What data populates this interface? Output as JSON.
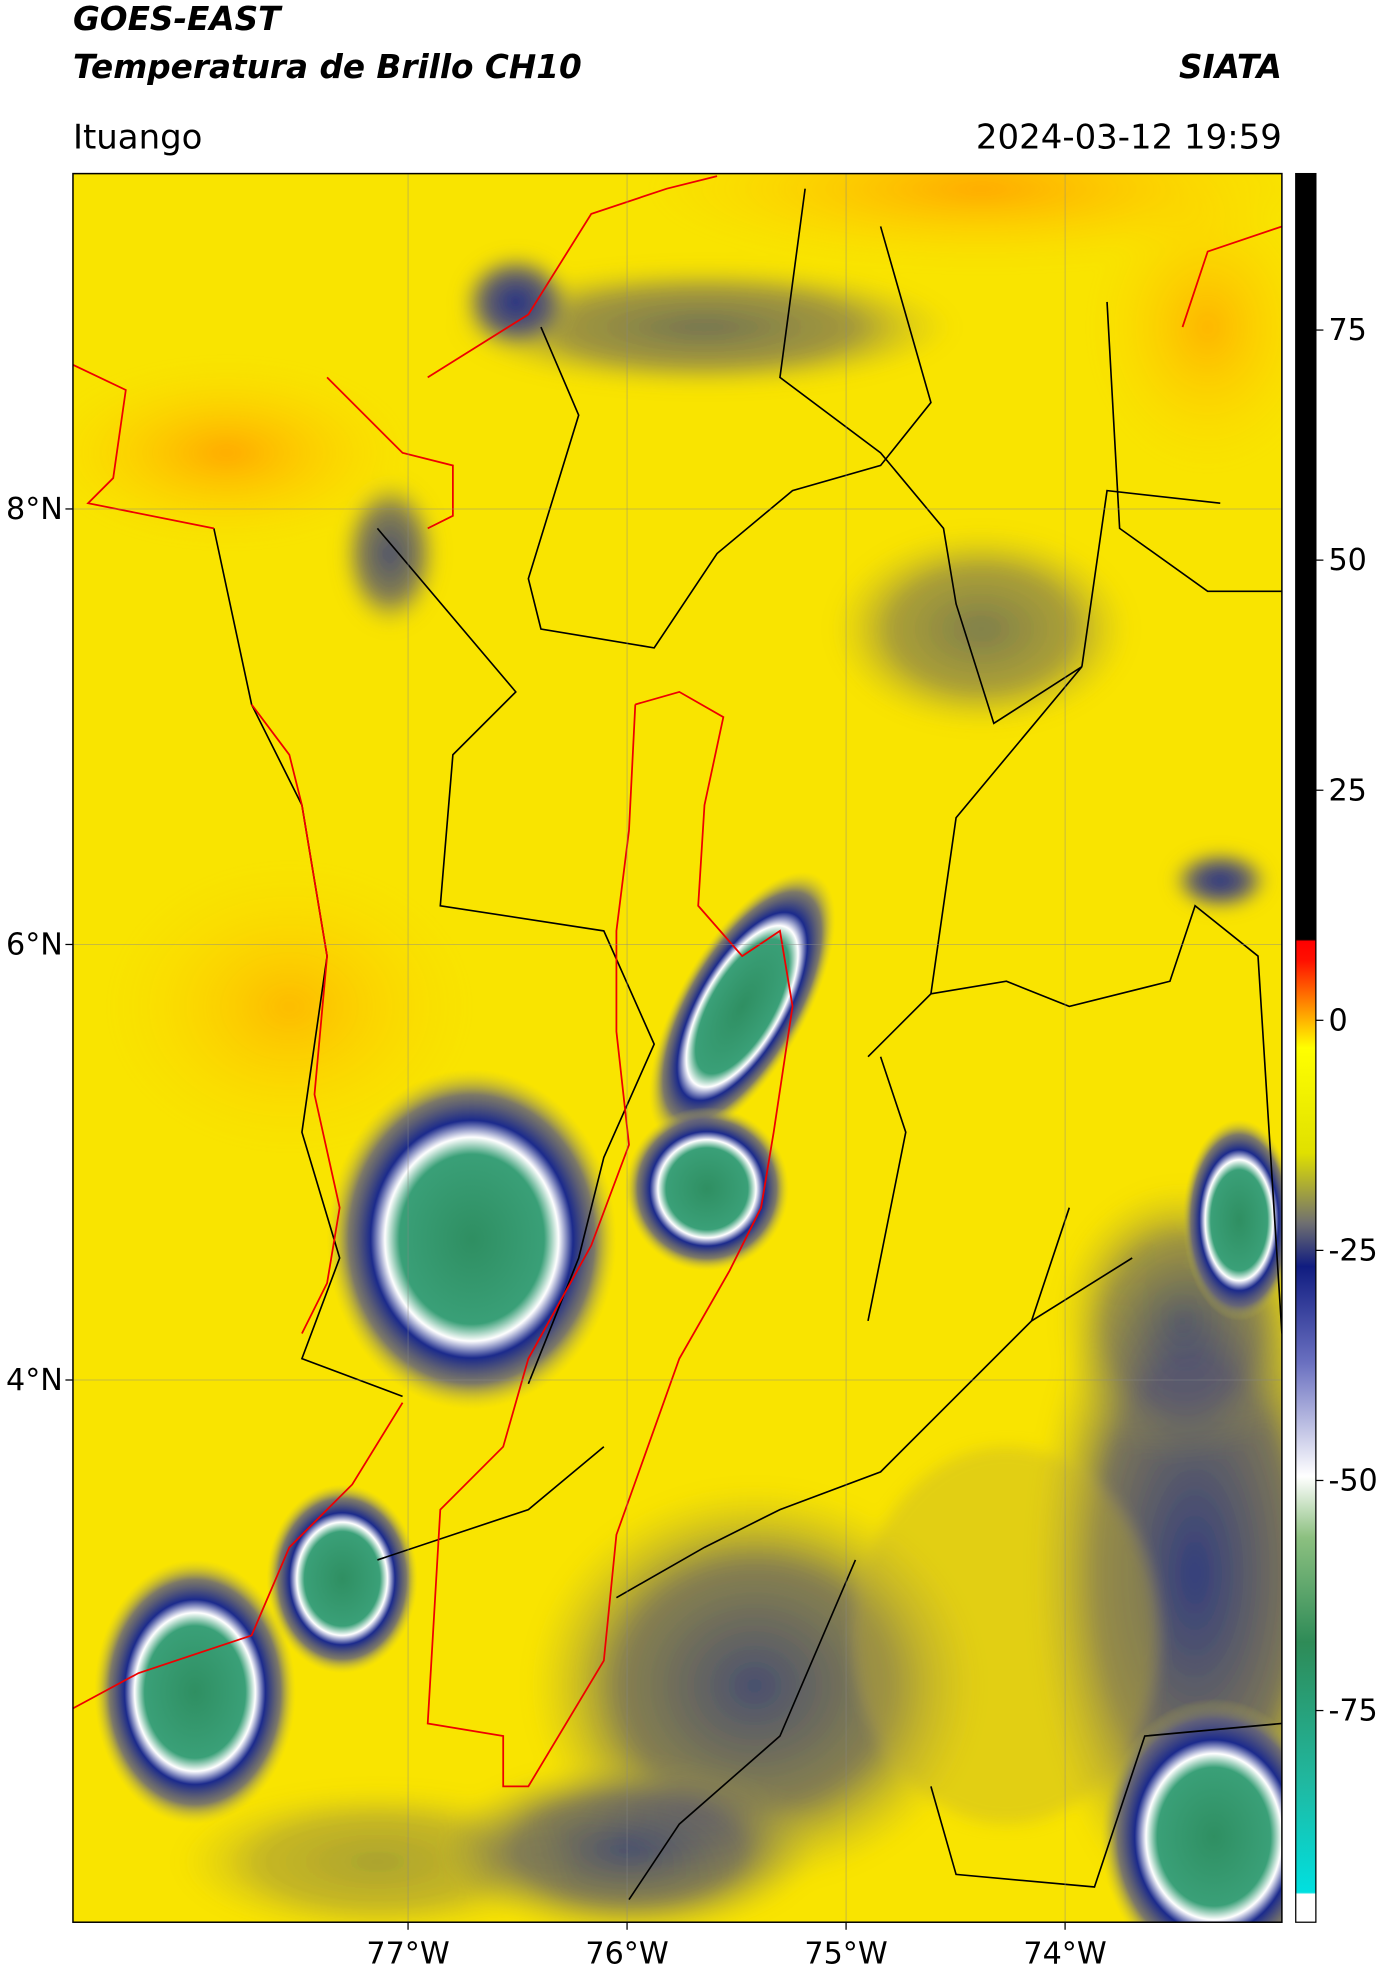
{
  "header": {
    "satellite": "GOES-EAST",
    "product": "Temperatura de Brillo CH10",
    "agency": "SIATA",
    "location": "Ituango",
    "datetime": "2024-03-12 19:59"
  },
  "map": {
    "lon_range": [
      -78.53,
      -73.01
    ],
    "lat_range": [
      1.51,
      9.54
    ],
    "lon_ticks": [
      {
        "value": -77,
        "label": "77°W"
      },
      {
        "value": -76,
        "label": "76°W"
      },
      {
        "value": -75,
        "label": "75°W"
      },
      {
        "value": -74,
        "label": "74°W"
      }
    ],
    "lat_ticks": [
      {
        "value": 8,
        "label": "8°N"
      },
      {
        "value": 6,
        "label": "6°N"
      },
      {
        "value": 4,
        "label": "4°N"
      }
    ],
    "grid": true
  },
  "colorbar": {
    "range": [
      -98,
      92
    ],
    "ticks": [
      75,
      50,
      25,
      0,
      -25,
      -50,
      -75
    ]
  }
}
